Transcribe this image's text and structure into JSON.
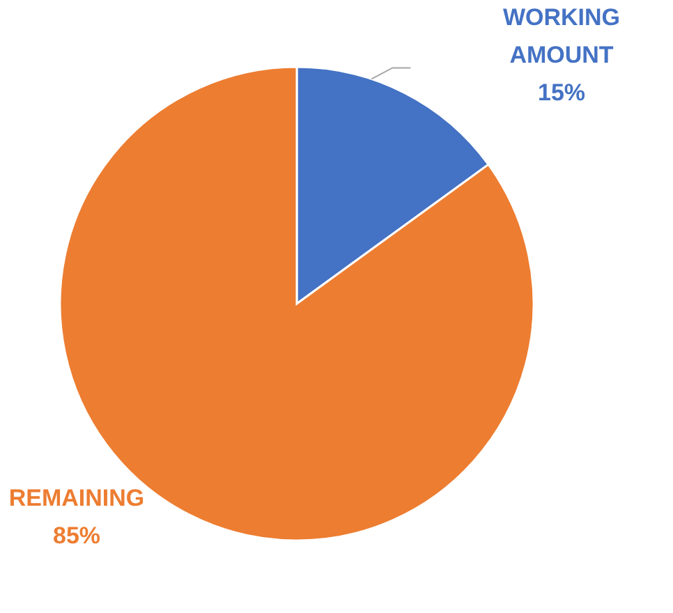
{
  "chart_data": {
    "type": "pie",
    "categories": [
      "WORKING AMOUNT",
      "REMAINING"
    ],
    "values": [
      15,
      85
    ],
    "colors": [
      "#4472c4",
      "#ed7d31"
    ],
    "value_labels": [
      "15%",
      "85%"
    ],
    "legend": false
  }
}
